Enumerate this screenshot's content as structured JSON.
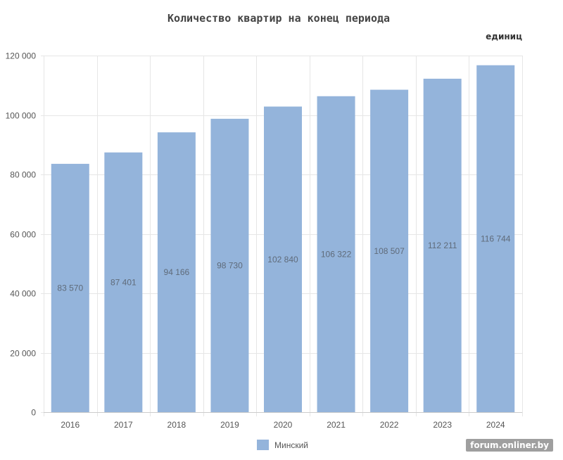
{
  "chart_data": {
    "type": "bar",
    "title": "Количество квартир на конец периода",
    "unit_label": "единиц",
    "categories": [
      "2016",
      "2017",
      "2018",
      "2019",
      "2020",
      "2021",
      "2022",
      "2023",
      "2024"
    ],
    "series": [
      {
        "name": "Минский",
        "color": "#94b4db",
        "values": [
          83570,
          87401,
          94166,
          98730,
          102840,
          106322,
          108507,
          112211,
          116744
        ],
        "value_labels": [
          "83 570",
          "87 401",
          "94 166",
          "98 730",
          "102 840",
          "106 322",
          "108 507",
          "112 211",
          "116 744"
        ]
      }
    ],
    "ylim": [
      0,
      120000
    ],
    "y_ticks": [
      0,
      20000,
      40000,
      60000,
      80000,
      100000,
      120000
    ],
    "y_tick_labels": [
      "0",
      "20 000",
      "40 000",
      "60 000",
      "80 000",
      "100 000",
      "120 000"
    ],
    "grid": true,
    "legend_position": "bottom"
  },
  "watermark": "forum.onliner.by"
}
